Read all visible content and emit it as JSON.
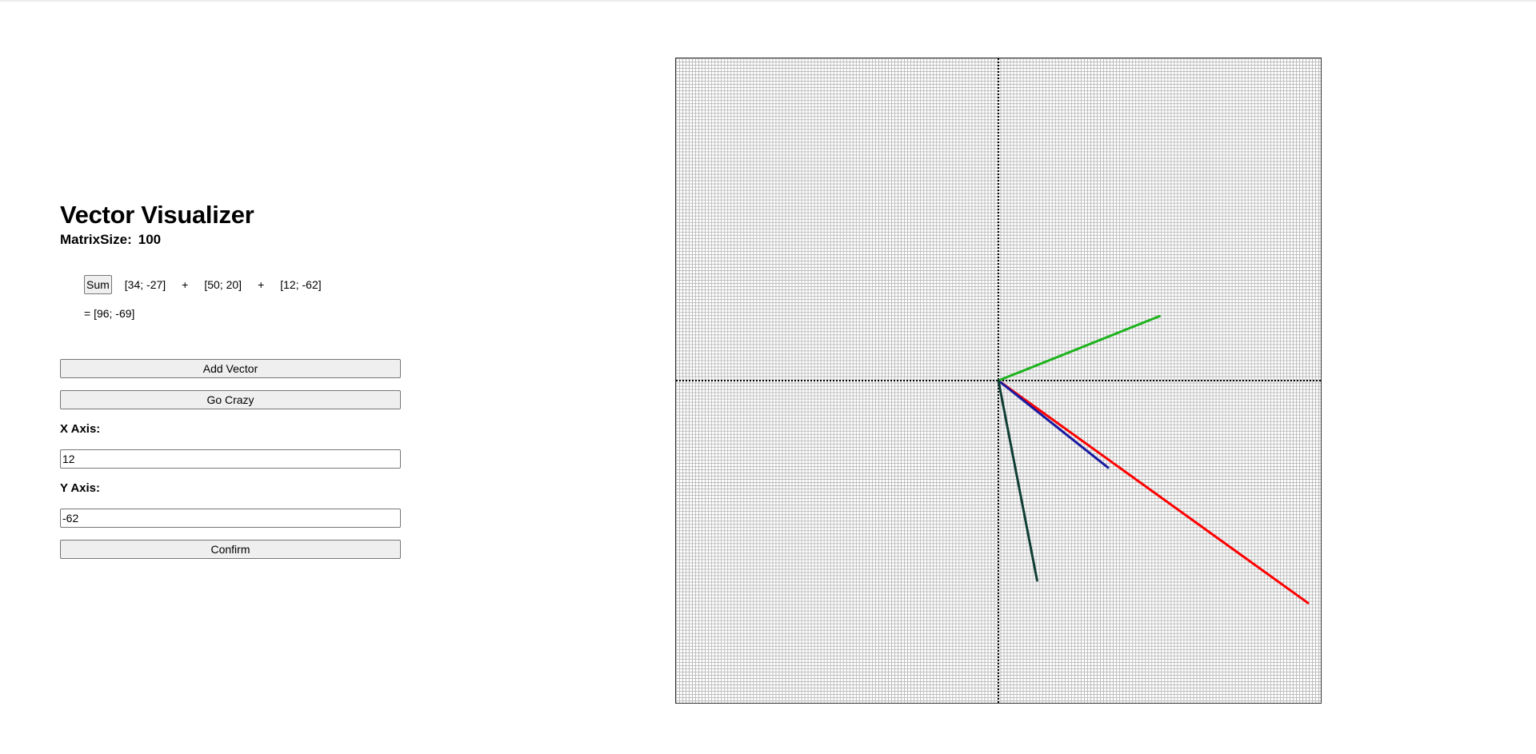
{
  "app": {
    "title": "Vector Visualizer",
    "matrix_size_label": "MatrixSize:",
    "matrix_size_value": "100"
  },
  "sum": {
    "button_label": "Sum",
    "vectors": [
      {
        "text": "[34; -27]",
        "x": 34,
        "y": -27,
        "color": "#1a1aa0"
      },
      {
        "text": "[50; 20]",
        "x": 50,
        "y": 20,
        "color": "#1db31d"
      },
      {
        "text": "[12; -62]",
        "x": 12,
        "y": -62,
        "color": "#0f3d32"
      }
    ],
    "plus_sign": "+",
    "result_text": "= [96; -69]",
    "result_vector": {
      "x": 96,
      "y": -69,
      "color": "#ff0000"
    }
  },
  "controls": {
    "add_vector_label": "Add Vector",
    "go_crazy_label": "Go Crazy",
    "x_axis_label": "X Axis:",
    "x_axis_value": "12",
    "y_axis_label": "Y Axis:",
    "y_axis_value": "-62",
    "confirm_label": "Confirm"
  },
  "grid": {
    "matrix_size": 100,
    "cell_count": 200,
    "axis_color": "#000000",
    "grid_color": "#b9b9b9"
  }
}
